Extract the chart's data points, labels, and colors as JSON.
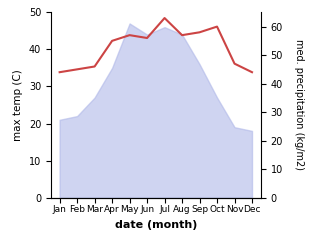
{
  "months": [
    "Jan",
    "Feb",
    "Mar",
    "Apr",
    "May",
    "Jun",
    "Jul",
    "Aug",
    "Sep",
    "Oct",
    "Nov",
    "Dec"
  ],
  "max_temp": [
    21,
    22,
    27,
    35,
    47,
    44,
    46,
    44,
    36,
    27,
    19,
    18
  ],
  "precipitation": [
    44,
    45,
    46,
    55,
    57,
    56,
    63,
    57,
    58,
    60,
    47,
    44
  ],
  "temp_ylim": [
    0,
    50
  ],
  "precip_ylim": [
    0,
    65
  ],
  "precip_yticks": [
    0,
    10,
    20,
    30,
    40,
    50,
    60
  ],
  "temp_yticks": [
    0,
    10,
    20,
    30,
    40,
    50
  ],
  "fill_color": "#b0b8e8",
  "fill_alpha": 0.6,
  "line_color": "#cc4444",
  "line_width": 1.5,
  "xlabel": "date (month)",
  "ylabel_left": "max temp (C)",
  "ylabel_right": "med. precipitation (kg/m2)",
  "bg_color": "#ffffff"
}
